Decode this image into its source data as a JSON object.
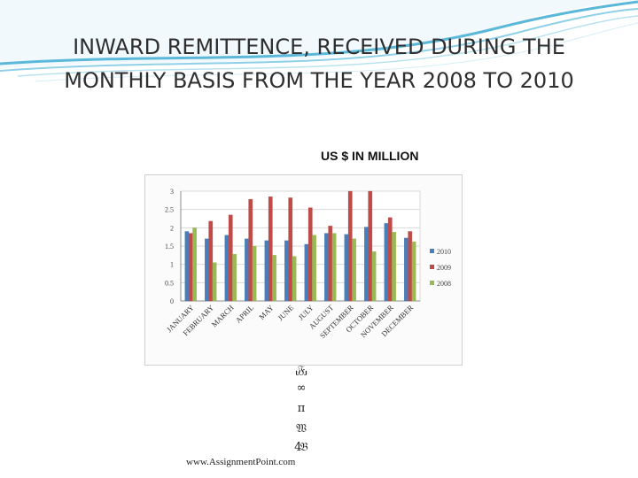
{
  "slide": {
    "title_line1": "INWARD REMITTENCE, RECEIVED DURING THE",
    "title_line2": "MONTHLY BASIS FROM THE YEAR 2008 TO 2010",
    "unit_label": "US $ IN MILLION",
    "glitch_lines": [
      "⸤𝔉⸥",
      "∞",
      "π",
      "𝔚",
      "4𝔅"
    ],
    "footer": "www.AssignmentPoint.com"
  },
  "colors": {
    "2010": "#4a7ebb",
    "2009": "#be4b48",
    "2008": "#98b954"
  },
  "chart_data": {
    "type": "bar",
    "title": "",
    "xlabel": "",
    "ylabel": "",
    "ylim": [
      0,
      3
    ],
    "yticks": [
      "0",
      "0.5",
      "1",
      "1.5",
      "2",
      "2.5",
      "3"
    ],
    "grid": true,
    "legend_position": "right",
    "categories": [
      "JANUARY",
      "FEBRUARY",
      "MARCH",
      "APRIL",
      "MAY",
      "JUNE",
      "JULY",
      "AUGUST",
      "SEPTEMBER",
      "OCTOBER",
      "NOVEMBER",
      "DECEMBER"
    ],
    "series": [
      {
        "name": "2010",
        "values": [
          1.9,
          1.7,
          1.8,
          1.7,
          1.65,
          1.65,
          1.55,
          1.85,
          1.82,
          2.02,
          2.12,
          1.72
        ]
      },
      {
        "name": "2009",
        "values": [
          1.85,
          2.18,
          2.35,
          2.78,
          2.85,
          2.82,
          2.55,
          2.05,
          3.0,
          3.0,
          2.28,
          1.9
        ]
      },
      {
        "name": "2008",
        "values": [
          2.0,
          1.05,
          1.28,
          1.5,
          1.25,
          1.22,
          1.8,
          1.85,
          1.7,
          1.35,
          1.88,
          1.62
        ]
      }
    ]
  }
}
